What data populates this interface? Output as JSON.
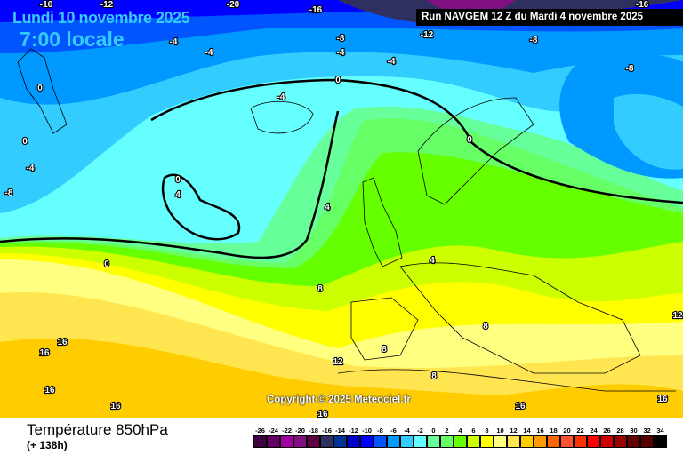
{
  "header": {
    "date": "Lundi 10 novembre 2025",
    "local_time": "7:00 locale",
    "run": "Run NAVGEM 12 Z du Mardi 4 novembre 2025"
  },
  "copyright": "Copyright © 2025 Meteociel.fr",
  "footer": {
    "variable": "Température 850hPa",
    "lead_time": "(+ 138h)"
  },
  "legend": {
    "labels": [
      "-26",
      "-24",
      "-22",
      "-20",
      "-18",
      "-16",
      "-14",
      "-12",
      "-10",
      "-8",
      "-6",
      "-4",
      "-2",
      "0",
      "2",
      "4",
      "6",
      "8",
      "10",
      "12",
      "14",
      "16",
      "18",
      "20",
      "22",
      "24",
      "26",
      "28",
      "30",
      "32",
      "34"
    ],
    "colors": [
      "#3d0040",
      "#660066",
      "#a000a0",
      "#801080",
      "#600040",
      "#303060",
      "#003399",
      "#0000cc",
      "#0000ff",
      "#0055ff",
      "#0099ff",
      "#33ccff",
      "#66ffff",
      "#66ff99",
      "#66ff66",
      "#66ff00",
      "#ccff00",
      "#ffff00",
      "#ffff80",
      "#ffe650",
      "#ffcc00",
      "#ff9900",
      "#ff6600",
      "#ff5033",
      "#ff3300",
      "#ff0000",
      "#cc0000",
      "#990000",
      "#660000",
      "#550000",
      "#000000"
    ]
  },
  "contour_labels": [
    "-16",
    "-12",
    "-8",
    "-20",
    "-16",
    "-12",
    "-16",
    "-4",
    "-4",
    "-8",
    "-4",
    "-4",
    "0",
    "0",
    "-4",
    "-8",
    "-4",
    "0",
    "0",
    "4",
    "0",
    "4",
    "4",
    "8",
    "12",
    "16",
    "16",
    "16",
    "16",
    "16",
    "16",
    "8",
    "8",
    "8",
    "12",
    "16",
    "0",
    "-8"
  ]
}
